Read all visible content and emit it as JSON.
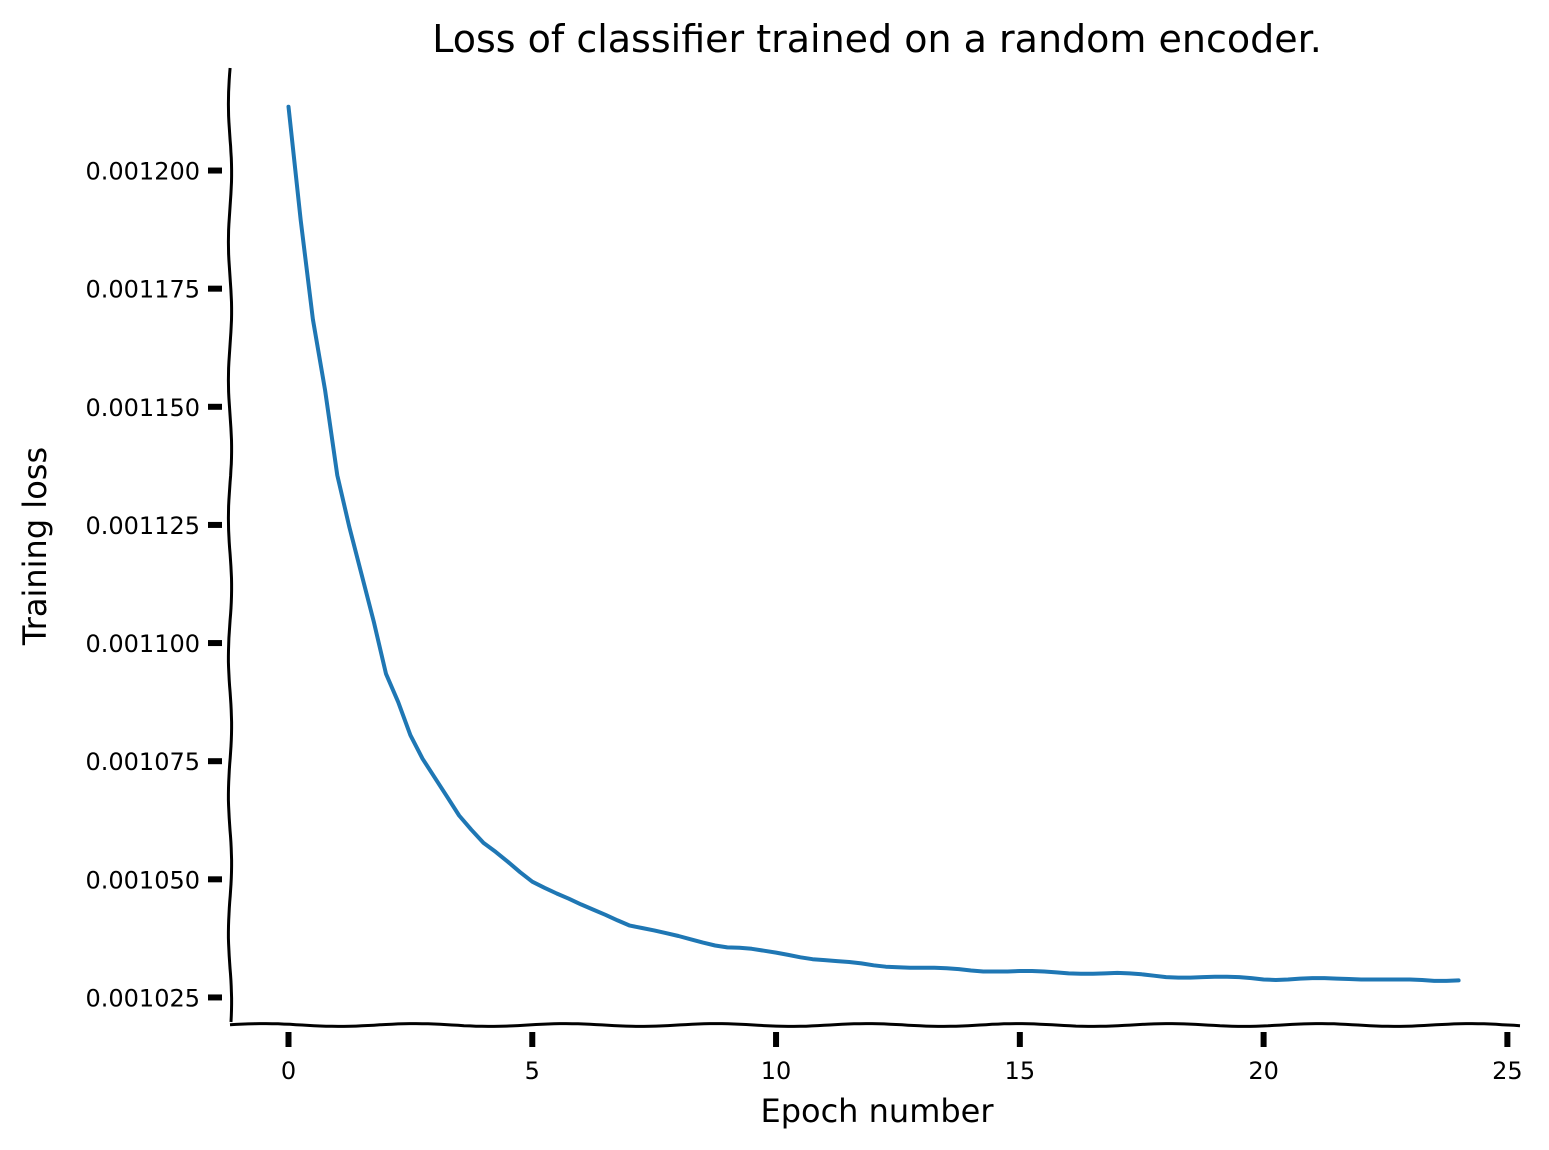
{
  "chart_data": {
    "type": "line",
    "title": "Loss of classifier trained on a random encoder.",
    "xlabel": "Epoch number",
    "ylabel": "Training loss",
    "xlim": [
      -1.2,
      25.3
    ],
    "ylim": [
      0.00101917,
      0.0012217
    ],
    "xticks": [
      0,
      5,
      10,
      15,
      20,
      25
    ],
    "xtick_labels": [
      "0",
      "5",
      "10",
      "15",
      "20",
      "25"
    ],
    "yticks": [
      0.001025,
      0.00105,
      0.001075,
      0.0011,
      0.001125,
      0.00115,
      0.001175,
      0.0012
    ],
    "ytick_labels": [
      "0.001025",
      "0.001050",
      "0.001075",
      "0.001100",
      "0.001125",
      "0.001150",
      "0.001175",
      "0.001200"
    ],
    "grid": false,
    "colors": {
      "line": "#1f77b4",
      "axis": "#000000"
    },
    "series": [
      {
        "x": [
          0,
          0.25,
          0.5,
          0.75,
          1,
          1.25,
          1.5,
          1.75,
          2,
          2.25,
          2.5,
          2.75,
          3,
          3.25,
          3.5,
          3.75,
          4,
          4.25,
          4.5,
          4.75,
          5,
          5.25,
          5.5,
          5.75,
          6,
          6.25,
          6.5,
          6.75,
          7,
          7.25,
          7.5,
          7.75,
          8,
          8.25,
          8.5,
          8.75,
          9,
          9.25,
          9.5,
          9.75,
          10,
          10.25,
          10.5,
          10.75,
          11,
          11.25,
          11.5,
          11.75,
          12,
          12.25,
          12.5,
          12.75,
          13,
          13.25,
          13.5,
          13.75,
          14,
          14.25,
          14.5,
          14.75,
          15,
          15.25,
          15.5,
          15.75,
          16,
          16.25,
          16.5,
          16.75,
          17,
          17.25,
          17.5,
          17.75,
          18,
          18.25,
          18.5,
          18.75,
          19,
          19.25,
          19.5,
          19.75,
          20,
          20.25,
          20.5,
          20.75,
          21,
          21.25,
          21.5,
          21.75,
          22,
          22.25,
          22.5,
          22.75,
          23,
          23.25,
          23.5,
          23.75,
          24
        ],
        "values": [
          0.0012135,
          0.0011895,
          0.0011685,
          0.0011535,
          0.0011355,
          0.0011245,
          0.0011145,
          0.0011045,
          0.0010935,
          0.0010875,
          0.0010805,
          0.0010755,
          0.0010715,
          0.0010675,
          0.0010635,
          0.0010605,
          0.0010577,
          0.0010558,
          0.0010537,
          0.0010515,
          0.0010495,
          0.0010482,
          0.001047,
          0.0010459,
          0.0010447,
          0.0010436,
          0.0010425,
          0.0010413,
          0.0010402,
          0.0010397,
          0.0010392,
          0.0010386,
          0.001038,
          0.0010373,
          0.0010366,
          0.001036,
          0.0010356,
          0.0010355,
          0.0010353,
          0.0010349,
          0.0010345,
          0.001034,
          0.0010335,
          0.0010331,
          0.0010329,
          0.0010327,
          0.0010325,
          0.0010322,
          0.0010318,
          0.0010315,
          0.0010314,
          0.0010313,
          0.0010313,
          0.0010313,
          0.0010312,
          0.001031,
          0.0010307,
          0.0010305,
          0.0010305,
          0.0010305,
          0.0010306,
          0.0010306,
          0.0010305,
          0.0010303,
          0.0010301,
          0.00103,
          0.00103,
          0.0010301,
          0.0010302,
          0.0010301,
          0.0010299,
          0.0010296,
          0.0010293,
          0.0010292,
          0.0010292,
          0.0010293,
          0.0010294,
          0.0010294,
          0.0010293,
          0.0010291,
          0.0010288,
          0.0010287,
          0.0010288,
          0.001029,
          0.0010291,
          0.0010291,
          0.001029,
          0.0010289,
          0.0010288,
          0.0010288,
          0.0010288,
          0.0010288,
          0.0010288,
          0.0010287,
          0.0010285,
          0.0010285,
          0.0010286
        ]
      }
    ]
  }
}
